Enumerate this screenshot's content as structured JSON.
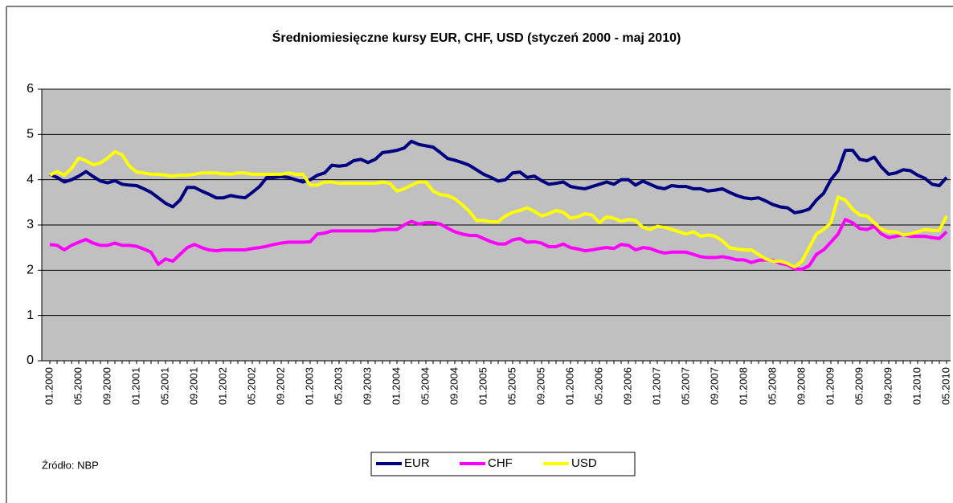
{
  "chart_data": {
    "type": "line",
    "title": "Średniomiesięczne kursy EUR, CHF, USD (styczeń 2000 - maj 2010)",
    "source": "Źródło: NBP",
    "categories": [
      "01.2000",
      null,
      null,
      null,
      "05.2000",
      null,
      null,
      null,
      "09.2000",
      null,
      null,
      null,
      "01.2001",
      null,
      null,
      null,
      "05.2001",
      null,
      null,
      null,
      "09.2001",
      null,
      null,
      null,
      "01.2002",
      null,
      null,
      null,
      "05.2002",
      null,
      null,
      null,
      "09.2002",
      null,
      null,
      null,
      "01.2003",
      null,
      null,
      null,
      "05.2003",
      null,
      null,
      null,
      "09.2003",
      null,
      null,
      null,
      "01.2004",
      null,
      null,
      null,
      "05.2004",
      null,
      null,
      null,
      "09.2004",
      null,
      null,
      null,
      "01.2005",
      null,
      null,
      null,
      "05.2005",
      null,
      null,
      null,
      "09.2005",
      null,
      null,
      null,
      "01.2006",
      null,
      null,
      null,
      "05.2006",
      null,
      null,
      null,
      "09.2006",
      null,
      null,
      null,
      "01.2007",
      null,
      null,
      null,
      "05.2007",
      null,
      null,
      null,
      "09.2007",
      null,
      null,
      null,
      "01.2008",
      null,
      null,
      null,
      "05.2008",
      null,
      null,
      null,
      "09.2008",
      null,
      null,
      null,
      "01.2009",
      null,
      null,
      null,
      "05.2009",
      null,
      null,
      null,
      "09.2009",
      null,
      null,
      null,
      "01.2010",
      null,
      null,
      null,
      "05.2010"
    ],
    "series": [
      {
        "name": "EUR",
        "color": "#000080",
        "values": [
          4.12,
          4.05,
          3.95,
          4.0,
          4.08,
          4.18,
          4.07,
          3.97,
          3.93,
          3.98,
          3.9,
          3.88,
          3.87,
          3.8,
          3.72,
          3.6,
          3.48,
          3.4,
          3.55,
          3.83,
          3.83,
          3.75,
          3.68,
          3.6,
          3.6,
          3.65,
          3.62,
          3.6,
          3.72,
          3.85,
          4.05,
          4.05,
          4.07,
          4.05,
          4.0,
          3.95,
          4.0,
          4.1,
          4.15,
          4.32,
          4.3,
          4.32,
          4.42,
          4.45,
          4.38,
          4.45,
          4.6,
          4.62,
          4.65,
          4.7,
          4.85,
          4.78,
          4.75,
          4.72,
          4.6,
          4.47,
          4.43,
          4.38,
          4.32,
          4.22,
          4.12,
          4.05,
          3.97,
          4.0,
          4.15,
          4.17,
          4.05,
          4.08,
          3.98,
          3.9,
          3.92,
          3.95,
          3.85,
          3.82,
          3.8,
          3.85,
          3.9,
          3.95,
          3.9,
          4.0,
          4.0,
          3.88,
          3.97,
          3.9,
          3.83,
          3.8,
          3.87,
          3.85,
          3.85,
          3.8,
          3.8,
          3.75,
          3.77,
          3.8,
          3.72,
          3.65,
          3.6,
          3.58,
          3.6,
          3.53,
          3.45,
          3.4,
          3.38,
          3.27,
          3.3,
          3.35,
          3.55,
          3.7,
          4.0,
          4.2,
          4.65,
          4.65,
          4.45,
          4.42,
          4.5,
          4.28,
          4.12,
          4.15,
          4.22,
          4.2,
          4.1,
          4.03,
          3.9,
          3.87,
          4.05
        ]
      },
      {
        "name": "CHF",
        "color": "#ff00ff",
        "values": [
          2.57,
          2.55,
          2.45,
          2.55,
          2.62,
          2.68,
          2.6,
          2.55,
          2.55,
          2.6,
          2.55,
          2.55,
          2.53,
          2.47,
          2.4,
          2.13,
          2.25,
          2.2,
          2.35,
          2.5,
          2.57,
          2.5,
          2.45,
          2.43,
          2.45,
          2.45,
          2.45,
          2.45,
          2.48,
          2.5,
          2.53,
          2.57,
          2.6,
          2.62,
          2.62,
          2.62,
          2.63,
          2.8,
          2.82,
          2.87,
          2.87,
          2.87,
          2.87,
          2.87,
          2.87,
          2.87,
          2.9,
          2.9,
          2.9,
          3.0,
          3.08,
          3.02,
          3.05,
          3.05,
          3.02,
          2.93,
          2.85,
          2.8,
          2.77,
          2.77,
          2.7,
          2.63,
          2.58,
          2.58,
          2.67,
          2.7,
          2.62,
          2.63,
          2.6,
          2.52,
          2.52,
          2.58,
          2.5,
          2.47,
          2.43,
          2.45,
          2.48,
          2.5,
          2.48,
          2.57,
          2.55,
          2.45,
          2.5,
          2.48,
          2.42,
          2.38,
          2.4,
          2.4,
          2.4,
          2.35,
          2.3,
          2.28,
          2.28,
          2.3,
          2.27,
          2.23,
          2.23,
          2.17,
          2.22,
          2.23,
          2.22,
          2.15,
          2.12,
          2.03,
          2.02,
          2.1,
          2.35,
          2.45,
          2.62,
          2.8,
          3.12,
          3.05,
          2.92,
          2.9,
          2.97,
          2.8,
          2.72,
          2.75,
          2.78,
          2.75,
          2.75,
          2.75,
          2.72,
          2.7,
          2.85
        ]
      },
      {
        "name": "USD",
        "color": "#ffff00",
        "values": [
          4.1,
          4.18,
          4.1,
          4.25,
          4.48,
          4.42,
          4.33,
          4.37,
          4.48,
          4.62,
          4.55,
          4.3,
          4.17,
          4.15,
          4.12,
          4.12,
          4.1,
          4.08,
          4.1,
          4.1,
          4.12,
          4.15,
          4.15,
          4.15,
          4.13,
          4.12,
          4.15,
          4.15,
          4.12,
          4.12,
          4.12,
          4.12,
          4.12,
          4.15,
          4.12,
          4.12,
          3.88,
          3.88,
          3.95,
          3.95,
          3.92,
          3.92,
          3.92,
          3.92,
          3.92,
          3.92,
          3.95,
          3.92,
          3.75,
          3.8,
          3.88,
          3.95,
          3.95,
          3.75,
          3.67,
          3.65,
          3.58,
          3.45,
          3.3,
          3.1,
          3.1,
          3.07,
          3.07,
          3.2,
          3.28,
          3.32,
          3.38,
          3.3,
          3.2,
          3.25,
          3.32,
          3.28,
          3.15,
          3.18,
          3.25,
          3.22,
          3.05,
          3.18,
          3.15,
          3.08,
          3.12,
          3.1,
          2.95,
          2.9,
          2.97,
          2.95,
          2.9,
          2.85,
          2.8,
          2.85,
          2.75,
          2.78,
          2.75,
          2.65,
          2.5,
          2.47,
          2.45,
          2.45,
          2.35,
          2.25,
          2.2,
          2.2,
          2.15,
          2.07,
          2.2,
          2.5,
          2.8,
          2.9,
          3.05,
          3.62,
          3.55,
          3.35,
          3.22,
          3.2,
          3.05,
          2.9,
          2.85,
          2.85,
          2.78,
          2.8,
          2.85,
          2.9,
          2.88,
          2.88,
          3.2
        ]
      }
    ],
    "ylim": [
      0,
      6
    ],
    "yticks": [
      0,
      1,
      2,
      3,
      4,
      5,
      6
    ],
    "grid": true,
    "plot_background": "#c0c0c0",
    "legend": "bottom"
  }
}
